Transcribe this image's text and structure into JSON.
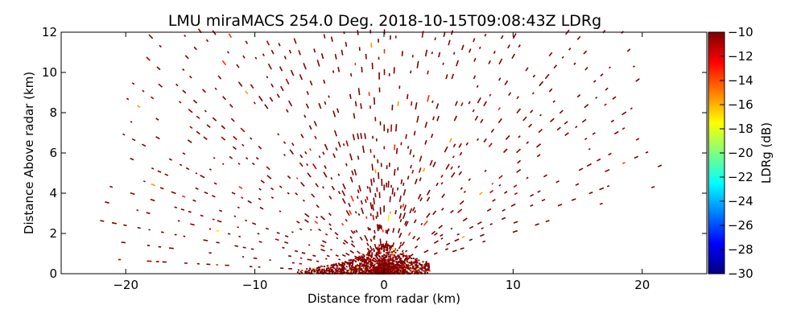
{
  "chart_data": {
    "type": "heatmap",
    "title": "LMU miraMACS 254.0 Deg. 2018-10-15T09:08:43Z  LDRg",
    "xlabel": "Distance from radar (km)",
    "ylabel": "Distance Above radar  (km)",
    "xlim": [
      -25,
      25
    ],
    "ylim": [
      0,
      12
    ],
    "xticks": [
      -20,
      -10,
      0,
      10,
      20
    ],
    "xtick_labels": [
      "−20",
      "−10",
      "0",
      "10",
      "20"
    ],
    "yticks": [
      0,
      2,
      4,
      6,
      8,
      10,
      12
    ],
    "ytick_labels": [
      "0",
      "2",
      "4",
      "6",
      "8",
      "10",
      "12"
    ],
    "colorbar": {
      "label": "LDRg (dB)",
      "range": [
        -30,
        -10
      ],
      "ticks": [
        -10,
        -12,
        -14,
        -16,
        -18,
        -20,
        -22,
        -24,
        -26,
        -28,
        -30
      ],
      "tick_labels": [
        "−10",
        "−12",
        "−14",
        "−16",
        "−18",
        "−20",
        "−22",
        "−24",
        "−26",
        "−28",
        "−30"
      ],
      "colormap": "jet",
      "colors": [
        "#00007f",
        "#0000ff",
        "#007fff",
        "#00ffff",
        "#7fff7f",
        "#ffff00",
        "#ff7f00",
        "#ff0000",
        "#7f0000"
      ]
    },
    "scan": {
      "type": "RHI",
      "azimuth_deg": 254.0,
      "max_range_km": 22,
      "left_horizon_height_km": 0.8,
      "right_edge_height_km": 4.3,
      "dominant_ldr_db": -10
    },
    "grid": false
  }
}
